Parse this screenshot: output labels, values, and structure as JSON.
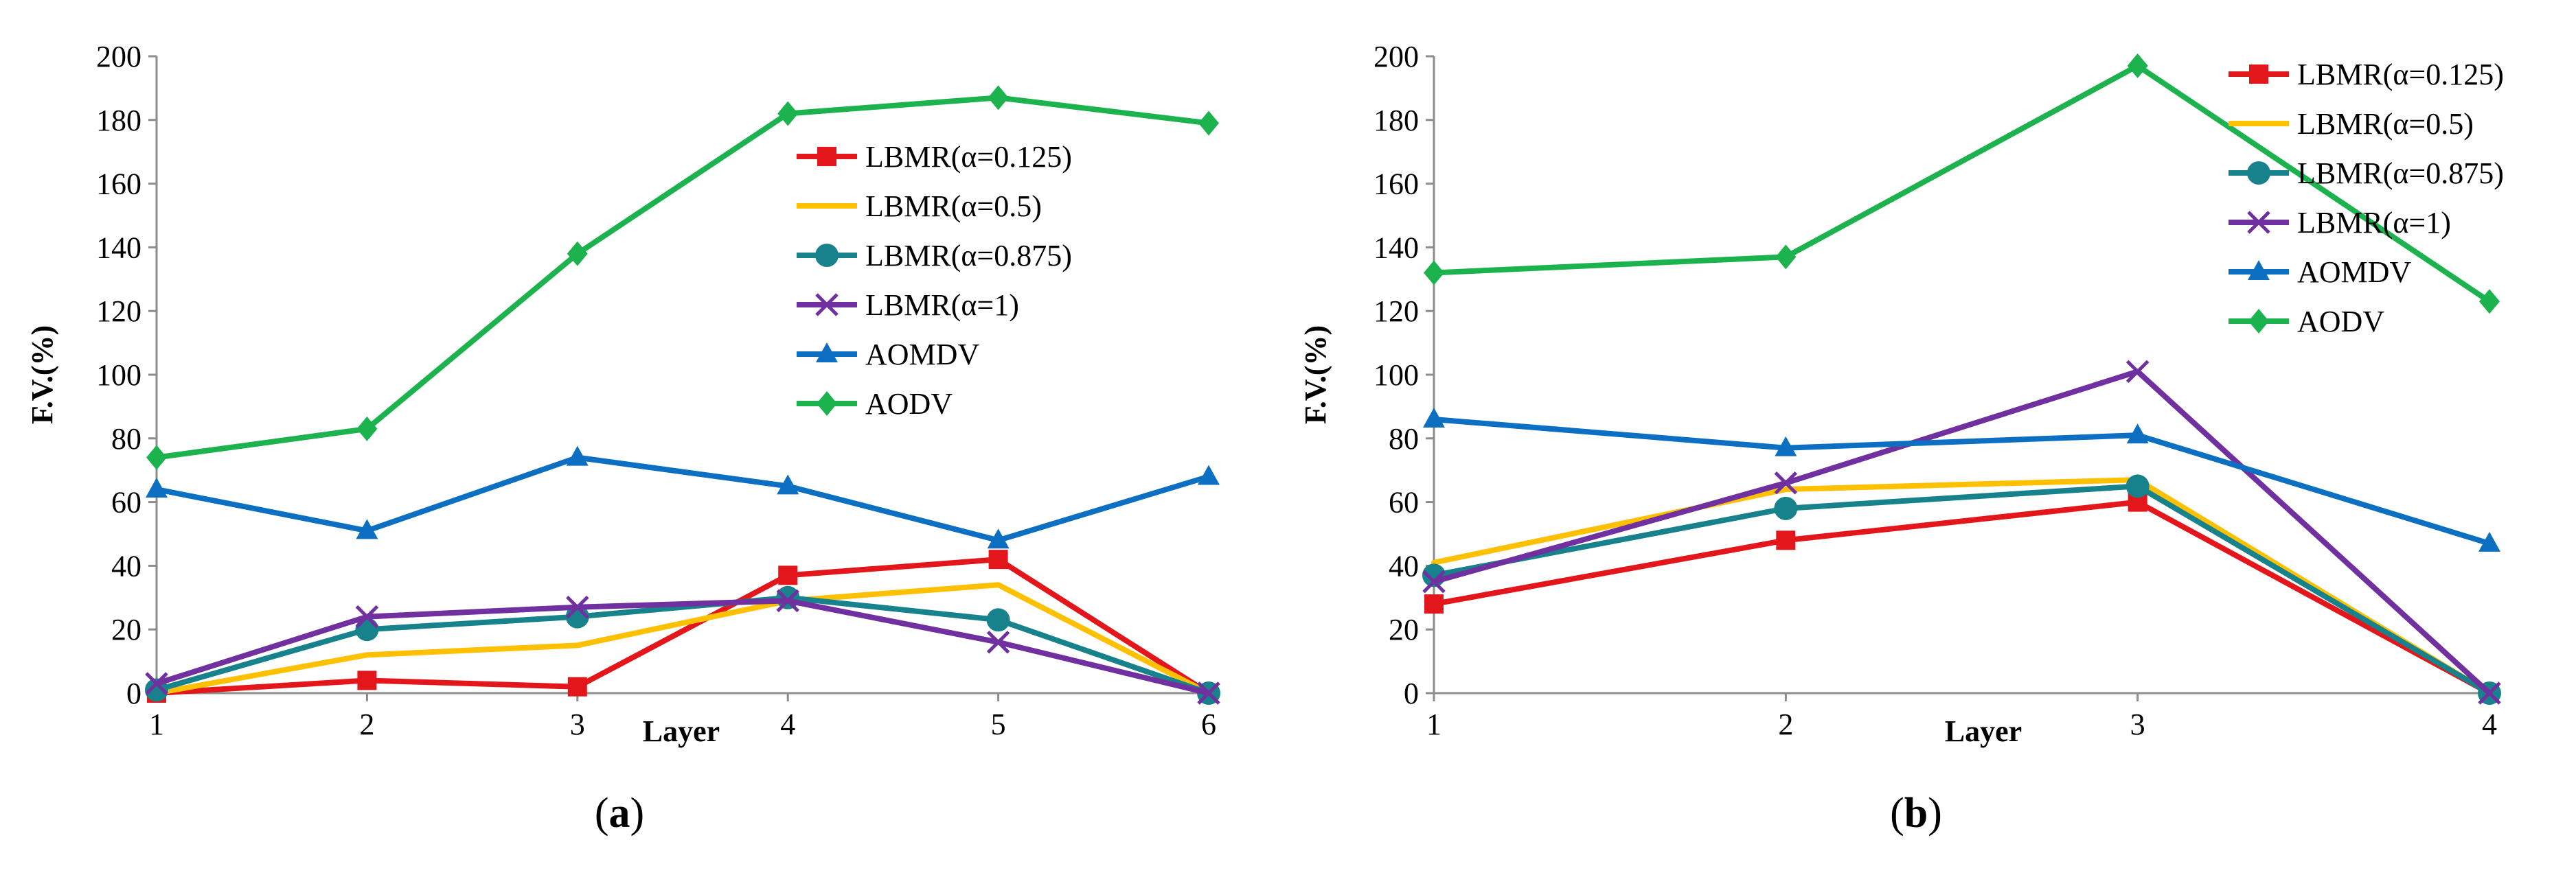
{
  "chart_data": [
    {
      "type": "line",
      "panel": "a",
      "caption_open": "(",
      "caption_letter": "a",
      "caption_close": ")",
      "x": [
        1,
        2,
        3,
        4,
        5,
        6
      ],
      "xlabel": "Layer",
      "ylabel": "F.V.(%)",
      "ylim": [
        0,
        200
      ],
      "yticks": [
        0,
        20,
        40,
        60,
        80,
        100,
        120,
        140,
        160,
        180,
        200
      ],
      "grid": false,
      "legend": "right-middle",
      "series": [
        {
          "name": "LBMR(α=0.125)",
          "color": "#e3171b",
          "marker": "square",
          "values": [
            0,
            4,
            2,
            37,
            42,
            0
          ]
        },
        {
          "name": "LBMR(α=0.5)",
          "color": "#ffc000",
          "marker": "none",
          "values": [
            0,
            12,
            15,
            29,
            34,
            0
          ]
        },
        {
          "name": "LBMR(α=0.875)",
          "color": "#17818c",
          "marker": "circle",
          "values": [
            1,
            20,
            24,
            30,
            23,
            0
          ]
        },
        {
          "name": "LBMR(α=1)",
          "color": "#7030a0",
          "marker": "x",
          "values": [
            3,
            24,
            27,
            29,
            16,
            0
          ]
        },
        {
          "name": "AOMDV",
          "color": "#0c6fc1",
          "marker": "triangle",
          "values": [
            64,
            51,
            74,
            65,
            48,
            68
          ]
        },
        {
          "name": "AODV",
          "color": "#1cb34f",
          "marker": "diamond",
          "values": [
            74,
            83,
            138,
            182,
            187,
            179
          ]
        }
      ]
    },
    {
      "type": "line",
      "panel": "b",
      "caption_open": "(",
      "caption_letter": "b",
      "caption_close": ")",
      "x": [
        1,
        2,
        3,
        4
      ],
      "xlabel": "Layer",
      "ylabel": "F.V.(%)",
      "ylim": [
        0,
        200
      ],
      "yticks": [
        0,
        20,
        40,
        60,
        80,
        100,
        120,
        140,
        160,
        180,
        200
      ],
      "grid": false,
      "legend": "top-right",
      "series": [
        {
          "name": "LBMR(α=0.125)",
          "color": "#e3171b",
          "marker": "square",
          "values": [
            28,
            48,
            60,
            0
          ]
        },
        {
          "name": "LBMR(α=0.5)",
          "color": "#ffc000",
          "marker": "none",
          "values": [
            41,
            64,
            67,
            0
          ]
        },
        {
          "name": "LBMR(α=0.875)",
          "color": "#17818c",
          "marker": "circle",
          "values": [
            37,
            58,
            65,
            0
          ]
        },
        {
          "name": "LBMR(α=1)",
          "color": "#7030a0",
          "marker": "x",
          "values": [
            35,
            66,
            101,
            0
          ]
        },
        {
          "name": "AOMDV",
          "color": "#0c6fc1",
          "marker": "triangle",
          "values": [
            86,
            77,
            81,
            47
          ]
        },
        {
          "name": "AODV",
          "color": "#1cb34f",
          "marker": "diamond",
          "values": [
            132,
            137,
            197,
            123
          ]
        }
      ]
    }
  ]
}
